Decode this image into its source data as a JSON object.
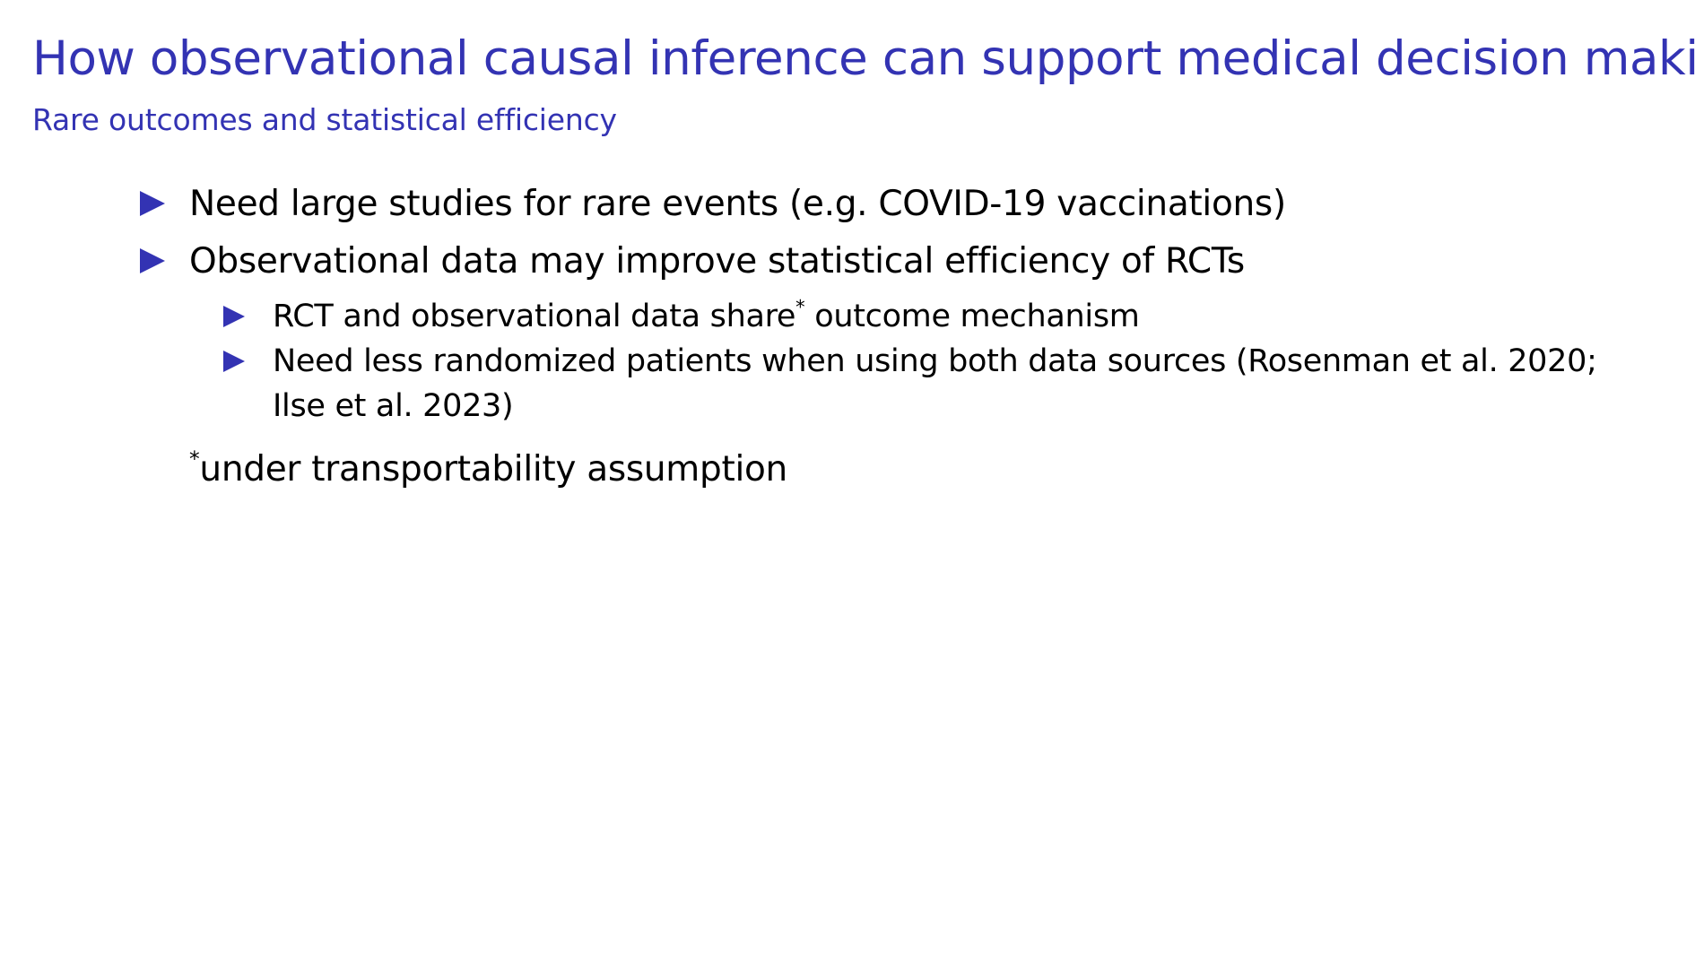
{
  "slide": {
    "title": "How observational causal inference can support medical decision making",
    "subtitle": "Rare outcomes and statistical efficiency",
    "accent_color": "#3333b3"
  },
  "bullets": [
    {
      "text": "Need large studies for rare events (e.g. COVID-19 vaccinations)"
    },
    {
      "text": "Observational data may improve statistical efficiency of RCTs"
    }
  ],
  "sub_bullets": [
    {
      "before": "RCT and observational data share",
      "mark": "*",
      "after": " outcome mechanism"
    },
    {
      "text": "Need less randomized patients when using both data sources (Rosenman et al. 2020; Ilse et al. 2023)"
    }
  ],
  "footnote": {
    "mark": "*",
    "text": "under transportability assumption"
  }
}
